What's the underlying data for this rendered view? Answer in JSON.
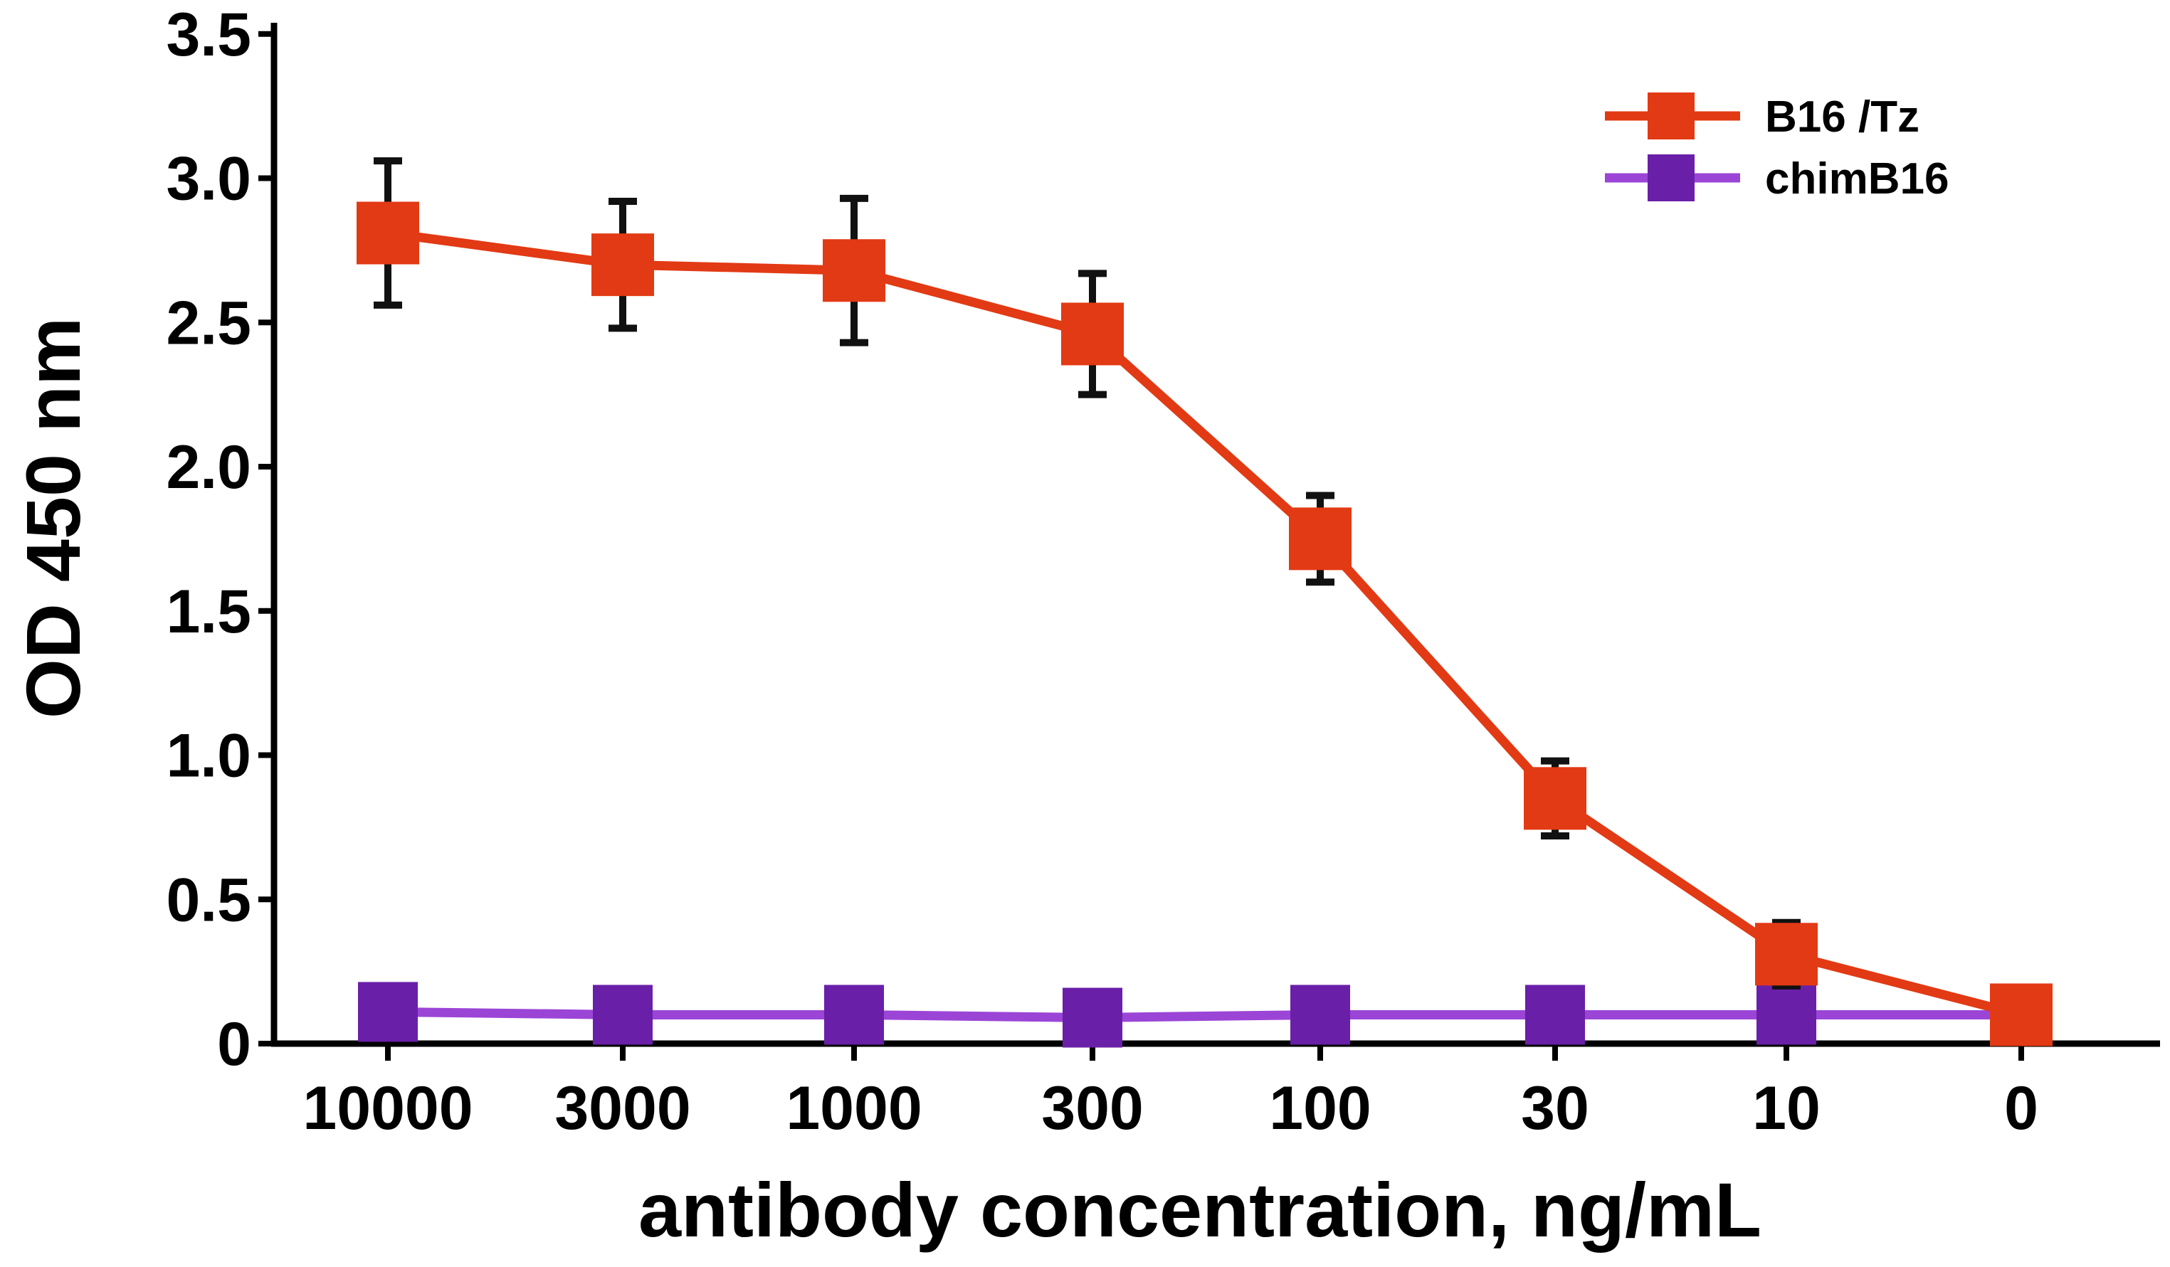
{
  "chart_data": {
    "type": "line",
    "categories": [
      "10000",
      "3000",
      "1000",
      "300",
      "100",
      "30",
      "10",
      "0"
    ],
    "xlabel": "antibody concentration, ng/mL",
    "ylabel": "OD 450 nm",
    "ylim": [
      0,
      3.5
    ],
    "yticks": [
      0,
      0.5,
      1.0,
      1.5,
      2.0,
      2.5,
      3.0,
      3.5
    ],
    "ytick_labels": [
      "0",
      "0.5",
      "1.0",
      "1.5",
      "2.0",
      "2.5",
      "3.0",
      "3.5"
    ],
    "legend_position": "top-right",
    "series": [
      {
        "name": "B16 /Tz",
        "color": "#e23a14",
        "marker": "square",
        "values": [
          2.81,
          2.7,
          2.68,
          2.46,
          1.75,
          0.85,
          0.31,
          0.1
        ],
        "error": [
          0.25,
          0.22,
          0.25,
          0.21,
          0.15,
          0.13,
          0.11,
          0.0
        ]
      },
      {
        "name": "chimB16",
        "color": "#6a1fa8",
        "line_color": "#9b45d6",
        "marker": "square",
        "values": [
          0.11,
          0.1,
          0.1,
          0.09,
          0.1,
          0.1,
          0.1,
          0.1
        ],
        "error": [
          0,
          0,
          0,
          0,
          0,
          0,
          0,
          0
        ]
      }
    ]
  }
}
